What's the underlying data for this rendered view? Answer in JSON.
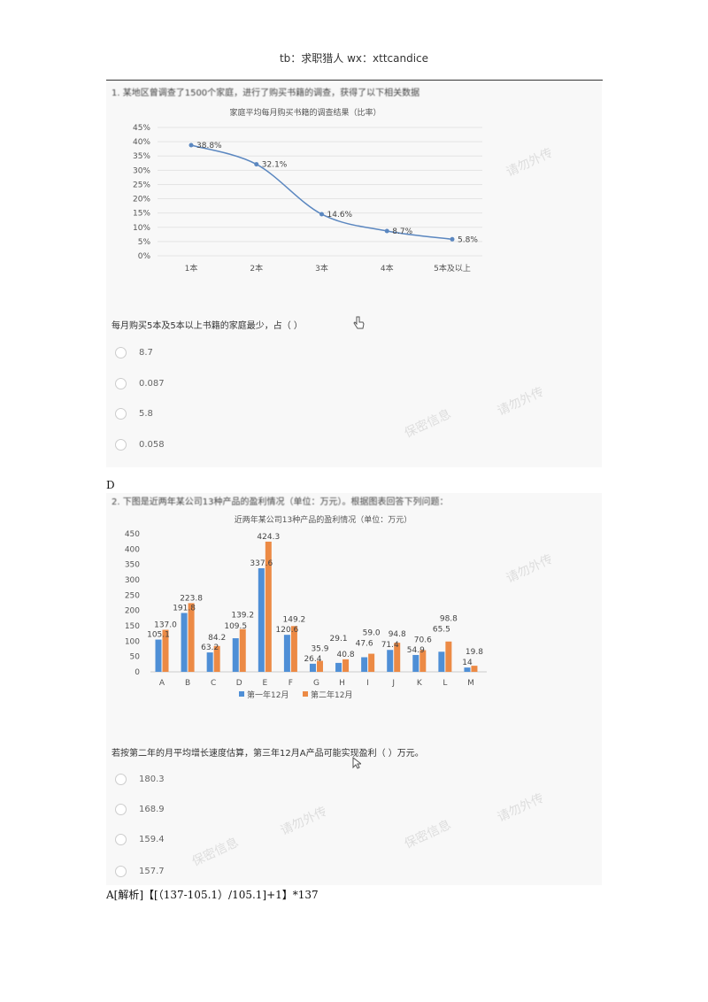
{
  "header": {
    "text": "tb：求职猎人  wx：xttcandice"
  },
  "q1": {
    "intro": "1. 某地区曾调查了1500个家庭，进行了购买书籍的调查，获得了以下相关数据",
    "question": "每月购买5本及5本以上书籍的家庭最少，占（ ）",
    "options": [
      "8.7",
      "0.087",
      "5.8",
      "0.058"
    ],
    "answer": "D"
  },
  "q2": {
    "intro": "2. 下图是近两年某公司13种产品的盈利情况（单位：万元）。根据图表回答下列问题：",
    "question": "若按第二年的月平均增长速度估算，第三年12月A产品可能实现盈利（ ）万元。",
    "options": [
      "180.3",
      "168.9",
      "159.4",
      "157.7"
    ],
    "answer": "A[解析]【[（137-105.1）/105.1]+1】*137"
  },
  "watermarks": [
    "保密信息",
    "请勿外传"
  ],
  "chart_data": [
    {
      "type": "line",
      "title": "家庭平均每月购买书籍的调查结果（比率）",
      "categories": [
        "1本",
        "2本",
        "3本",
        "4本",
        "5本及以上"
      ],
      "values": [
        38.8,
        32.1,
        14.6,
        8.7,
        5.8
      ],
      "labels": [
        "38.8%",
        "32.1%",
        "14.6%",
        "8.7%",
        "5.8%"
      ],
      "yticks": [
        "0%",
        "5%",
        "10%",
        "15%",
        "20%",
        "25%",
        "30%",
        "35%",
        "40%",
        "45%"
      ],
      "ylim": [
        0,
        45
      ],
      "grid": true,
      "color": "#5b87c0"
    },
    {
      "type": "bar",
      "title": "近两年某公司13种产品的盈利情况（单位：万元）",
      "categories": [
        "A",
        "B",
        "C",
        "D",
        "E",
        "F",
        "G",
        "H",
        "I",
        "J",
        "K",
        "L",
        "M"
      ],
      "series": [
        {
          "name": "第一年12月",
          "color": "#4f8fd6",
          "values": [
            105.1,
            191.8,
            63.2,
            109.5,
            337.6,
            120.6,
            26.4,
            29.1,
            47.6,
            71.4,
            54.9,
            65.5,
            14
          ],
          "labels": [
            "105.1",
            "191.8",
            "63.2",
            "109.5",
            "337.6",
            "120.6",
            "26.4",
            "29.1",
            "47.6",
            "71.4",
            "54.9",
            "65.5",
            "14"
          ]
        },
        {
          "name": "第二年12月",
          "color": "#ec8a45",
          "values": [
            137.0,
            223.8,
            84.2,
            139.2,
            424.3,
            149.2,
            35.9,
            40.8,
            59.0,
            94.8,
            70.6,
            98.8,
            19.8
          ],
          "labels": [
            "137.0",
            "223.8",
            "84.2",
            "139.2",
            "424.3",
            "149.2",
            "35.9",
            "40.8",
            "59.0",
            "94.8",
            "70.6",
            "98.8",
            "19.8"
          ]
        }
      ],
      "yticks": [
        "0",
        "50",
        "100",
        "150",
        "200",
        "250",
        "300",
        "350",
        "400",
        "450"
      ],
      "ylim": [
        0,
        450
      ],
      "grid": false,
      "legend": "bottom"
    }
  ]
}
